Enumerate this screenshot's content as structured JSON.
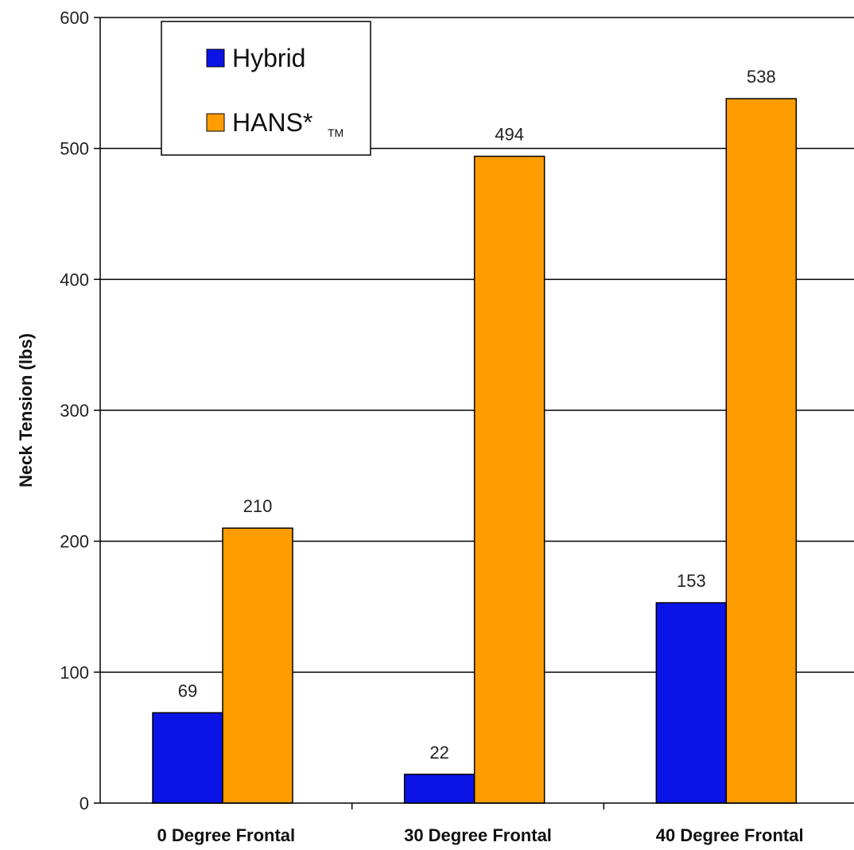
{
  "chart_data": {
    "type": "bar",
    "categories": [
      "0 Degree Frontal",
      "30 Degree Frontal",
      "40 Degree Frontal"
    ],
    "series": [
      {
        "name": "Hybrid",
        "color": "#0a14e6",
        "values": [
          69,
          22,
          153
        ]
      },
      {
        "name": "HANS*",
        "name_sub": "TM",
        "color": "#ff9c00",
        "values": [
          210,
          494,
          538
        ]
      }
    ],
    "title": "",
    "xlabel": "",
    "ylabel": "Neck Tension (lbs)",
    "ylim": [
      0,
      600
    ],
    "yticks": [
      0,
      100,
      200,
      300,
      400,
      500,
      600
    ],
    "grid": true,
    "legend_position": "top-left"
  }
}
